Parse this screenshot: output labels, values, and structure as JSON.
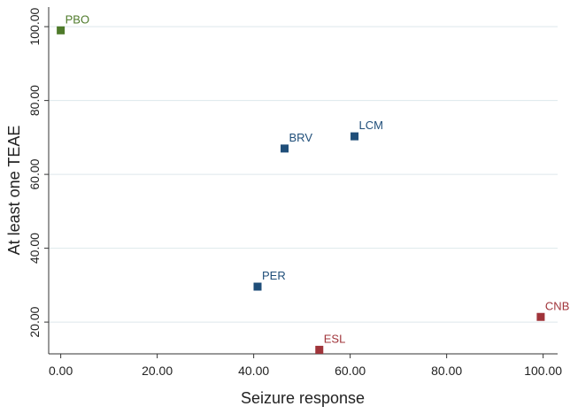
{
  "chart_data": {
    "type": "scatter",
    "x_label": "Seizure response",
    "y_label": "At least one TEAE",
    "points": [
      {
        "label": "PBO",
        "x": 0,
        "y": 99,
        "color": "#4e7a2a"
      },
      {
        "label": "BRV",
        "x": 46.4,
        "y": 67,
        "color": "#1f4e79"
      },
      {
        "label": "LCM",
        "x": 60.9,
        "y": 70.3,
        "color": "#1f4e79"
      },
      {
        "label": "PER",
        "x": 40.8,
        "y": 29.6,
        "color": "#1f4e79"
      },
      {
        "label": "ESL",
        "x": 53.6,
        "y": 12.5,
        "color": "#a0343a"
      },
      {
        "label": "CNB",
        "x": 99.5,
        "y": 21.4,
        "color": "#a0343a"
      }
    ],
    "xlim": [
      -2.5,
      103
    ],
    "ylim": [
      11.4,
      105.3
    ],
    "xticks": [
      {
        "value": 0,
        "label": "0.00"
      },
      {
        "value": 20,
        "label": "20.00"
      },
      {
        "value": 40,
        "label": "40.00"
      },
      {
        "value": 60,
        "label": "60.00"
      },
      {
        "value": 80,
        "label": "80.00"
      },
      {
        "value": 100,
        "label": "100.00"
      }
    ],
    "yticks": [
      {
        "value": 20,
        "label": "20.00"
      },
      {
        "value": 40,
        "label": "40.00"
      },
      {
        "value": 60,
        "label": "60.00"
      },
      {
        "value": 80,
        "label": "80.00"
      },
      {
        "value": 100,
        "label": "100.00"
      }
    ],
    "grid": true
  }
}
